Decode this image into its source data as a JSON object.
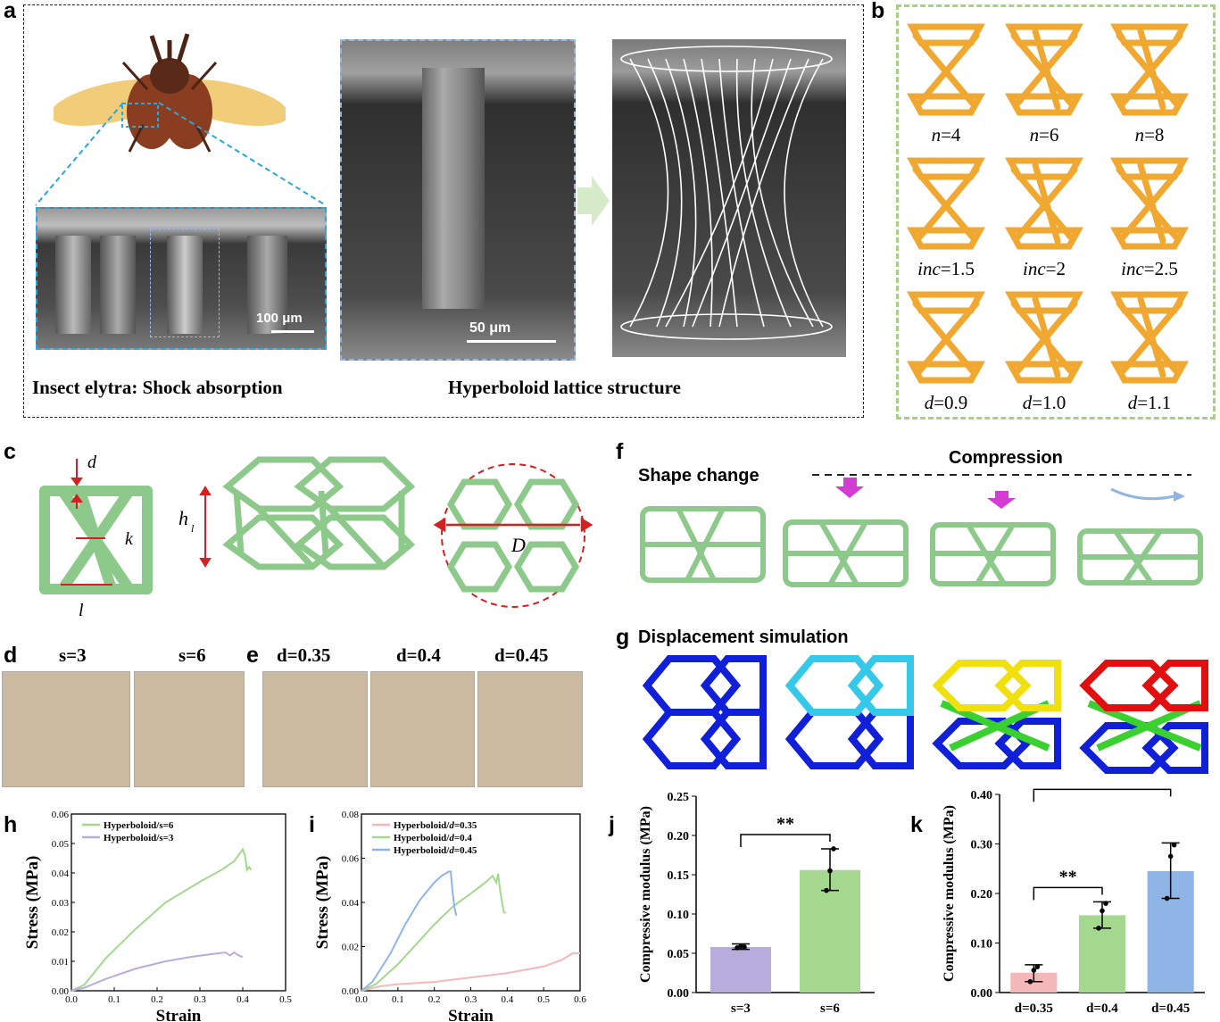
{
  "panels": {
    "a": "a",
    "b": "b",
    "c": "c",
    "d": "d",
    "e": "e",
    "f": "f",
    "g": "g",
    "h": "h",
    "i": "i",
    "j": "j",
    "k": "k"
  },
  "a": {
    "caption_left": "Insect elytra: Shock absorption",
    "caption_right": "Hyperboloid lattice structure",
    "scale1": "100 μm",
    "scale2": "50 μm"
  },
  "b": {
    "labels": [
      {
        "var": "n",
        "val": "=4"
      },
      {
        "var": "n",
        "val": "=6"
      },
      {
        "var": "n",
        "val": "=8"
      },
      {
        "var": "inc",
        "val": "=1.5"
      },
      {
        "var": "inc",
        "val": "=2"
      },
      {
        "var": "inc",
        "val": "=2.5"
      },
      {
        "var": "d",
        "val": "=0.9"
      },
      {
        "var": "d",
        "val": "=1.0"
      },
      {
        "var": "d",
        "val": "=1.1"
      }
    ]
  },
  "c": {
    "d_label": "d",
    "k_label": "k",
    "l_label": "l",
    "h_label": "h",
    "h_sub": "l",
    "D_label": "D"
  },
  "d": {
    "labels": [
      "s=3",
      "s=6"
    ]
  },
  "e": {
    "labels": [
      "d=0.35",
      "d=0.4",
      "d=0.45"
    ]
  },
  "f": {
    "shape_change": "Shape change",
    "compression": "Compression"
  },
  "g": {
    "title": "Displacement simulation"
  },
  "colors": {
    "green": "#9ed48a",
    "purple": "#b8acdc",
    "pink": "#f5b8b8",
    "blue": "#8fb5e6",
    "lattice_green": "#8dc98a",
    "orange": "#f0a830"
  },
  "chart_data": [
    {
      "id": "h",
      "type": "line",
      "xlabel": "Strain",
      "ylabel": "Stress (MPa)",
      "xlim": [
        0,
        0.5
      ],
      "ylim": [
        0,
        0.06
      ],
      "xticks": [
        "0.0",
        "0.1",
        "0.2",
        "0.3",
        "0.4",
        "0.5"
      ],
      "yticks": [
        "0.00",
        "0.01",
        "0.02",
        "0.03",
        "0.04",
        "0.05",
        "0.06"
      ],
      "legend": "top-left",
      "series": [
        {
          "name": "Hyperboloid/s=6",
          "color": "#a4d88e",
          "x": [
            0,
            0.03,
            0.08,
            0.15,
            0.22,
            0.3,
            0.35,
            0.38,
            0.4,
            0.405,
            0.41,
            0.415,
            0.42
          ],
          "y": [
            0,
            0.002,
            0.011,
            0.021,
            0.03,
            0.037,
            0.041,
            0.044,
            0.048,
            0.046,
            0.041,
            0.042,
            0.041
          ]
        },
        {
          "name": "Hyperboloid/s=3",
          "color": "#b8acdc",
          "x": [
            0,
            0.03,
            0.08,
            0.15,
            0.22,
            0.28,
            0.33,
            0.36,
            0.37,
            0.38,
            0.39,
            0.4
          ],
          "y": [
            0,
            0.001,
            0.004,
            0.0075,
            0.01,
            0.0115,
            0.0125,
            0.013,
            0.012,
            0.013,
            0.012,
            0.0115
          ]
        }
      ]
    },
    {
      "id": "i",
      "type": "line",
      "xlabel": "Strain",
      "ylabel": "Stress (MPa)",
      "xlim": [
        0,
        0.6
      ],
      "ylim": [
        0,
        0.08
      ],
      "xticks": [
        "0.0",
        "0.1",
        "0.2",
        "0.3",
        "0.4",
        "0.5",
        "0.6"
      ],
      "yticks": [
        "0.00",
        "0.02",
        "0.04",
        "0.06",
        "0.08"
      ],
      "legend": "top-left",
      "series": [
        {
          "name_prefix": "Hyperboloid/",
          "name_var": "d",
          "name_val": "=0.35",
          "color": "#f5b8b8",
          "x": [
            0,
            0.05,
            0.1,
            0.2,
            0.3,
            0.4,
            0.5,
            0.55,
            0.58,
            0.6
          ],
          "y": [
            0,
            0.002,
            0.003,
            0.004,
            0.006,
            0.008,
            0.011,
            0.014,
            0.017,
            0.017
          ]
        },
        {
          "name_prefix": "Hyperboloid/",
          "name_var": "d",
          "name_val": "=0.4",
          "color": "#a4d88e",
          "x": [
            0,
            0.04,
            0.1,
            0.15,
            0.2,
            0.25,
            0.3,
            0.34,
            0.36,
            0.37,
            0.375,
            0.38,
            0.39,
            0.395
          ],
          "y": [
            0,
            0.003,
            0.012,
            0.021,
            0.03,
            0.038,
            0.044,
            0.049,
            0.052,
            0.049,
            0.053,
            0.046,
            0.036,
            0.035
          ]
        },
        {
          "name_prefix": "Hyperboloid/",
          "name_var": "d",
          "name_val": "=0.45",
          "color": "#8fb5e6",
          "x": [
            0,
            0.03,
            0.08,
            0.12,
            0.16,
            0.2,
            0.22,
            0.24,
            0.245,
            0.25,
            0.255,
            0.26
          ],
          "y": [
            0,
            0.004,
            0.017,
            0.03,
            0.041,
            0.049,
            0.052,
            0.054,
            0.054,
            0.045,
            0.038,
            0.034
          ]
        }
      ]
    },
    {
      "id": "j",
      "type": "bar",
      "ylabel": "Compressive modulus (MPa)",
      "ylim": [
        0,
        0.25
      ],
      "yticks": [
        "0.00",
        "0.05",
        "0.10",
        "0.15",
        "0.20",
        "0.25"
      ],
      "categories": [
        "s=3",
        "s=6"
      ],
      "values": [
        0.058,
        0.156
      ],
      "errors": [
        [
          0.055,
          0.062
        ],
        [
          0.13,
          0.183
        ]
      ],
      "points": [
        [
          0.057,
          0.059,
          0.058
        ],
        [
          0.13,
          0.155,
          0.183
        ]
      ],
      "colors": [
        "#b8acdc",
        "#a4d88e"
      ],
      "sig": [
        {
          "from": 0,
          "to": 1,
          "label": "**"
        }
      ]
    },
    {
      "id": "k",
      "type": "bar",
      "ylabel": "Compressive modulus (MPa)",
      "ylim": [
        0,
        0.4
      ],
      "yticks": [
        "0.00",
        "0.10",
        "0.20",
        "0.30",
        "0.40"
      ],
      "categories": [
        "d=0.35",
        "d=0.4",
        "d=0.45"
      ],
      "values": [
        0.04,
        0.156,
        0.245
      ],
      "errors": [
        [
          0.022,
          0.056
        ],
        [
          0.13,
          0.183
        ],
        [
          0.19,
          0.302
        ]
      ],
      "points": [
        [
          0.022,
          0.045,
          0.052
        ],
        [
          0.13,
          0.165,
          0.18
        ],
        [
          0.19,
          0.275,
          0.298
        ]
      ],
      "colors": [
        "#f5b8b8",
        "#a4d88e",
        "#8fb5e6"
      ],
      "sig": [
        {
          "from": 0,
          "to": 1,
          "label": "**"
        },
        {
          "from": 0,
          "to": 2,
          "label": "**"
        }
      ]
    }
  ]
}
